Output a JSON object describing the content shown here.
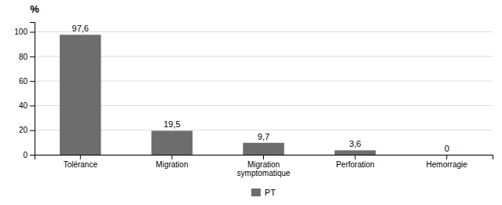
{
  "chart_data": {
    "type": "bar",
    "ylabel": "%",
    "categories": [
      "Tolérance",
      "Migration",
      "Migration\nsymptomatique",
      "Perforation",
      "Hemorragie"
    ],
    "series": [
      {
        "name": "PT",
        "color": "#6d6d6d",
        "values": [
          97.6,
          19.5,
          9.7,
          3.6,
          0
        ],
        "value_labels": [
          "97,6",
          "19,5",
          "9,7",
          "3,6",
          "0"
        ]
      }
    ],
    "ylim": [
      0,
      108
    ],
    "yticks": [
      0,
      20,
      40,
      60,
      80,
      100
    ],
    "grid": true,
    "data_labels": true,
    "legend": "bottom"
  }
}
